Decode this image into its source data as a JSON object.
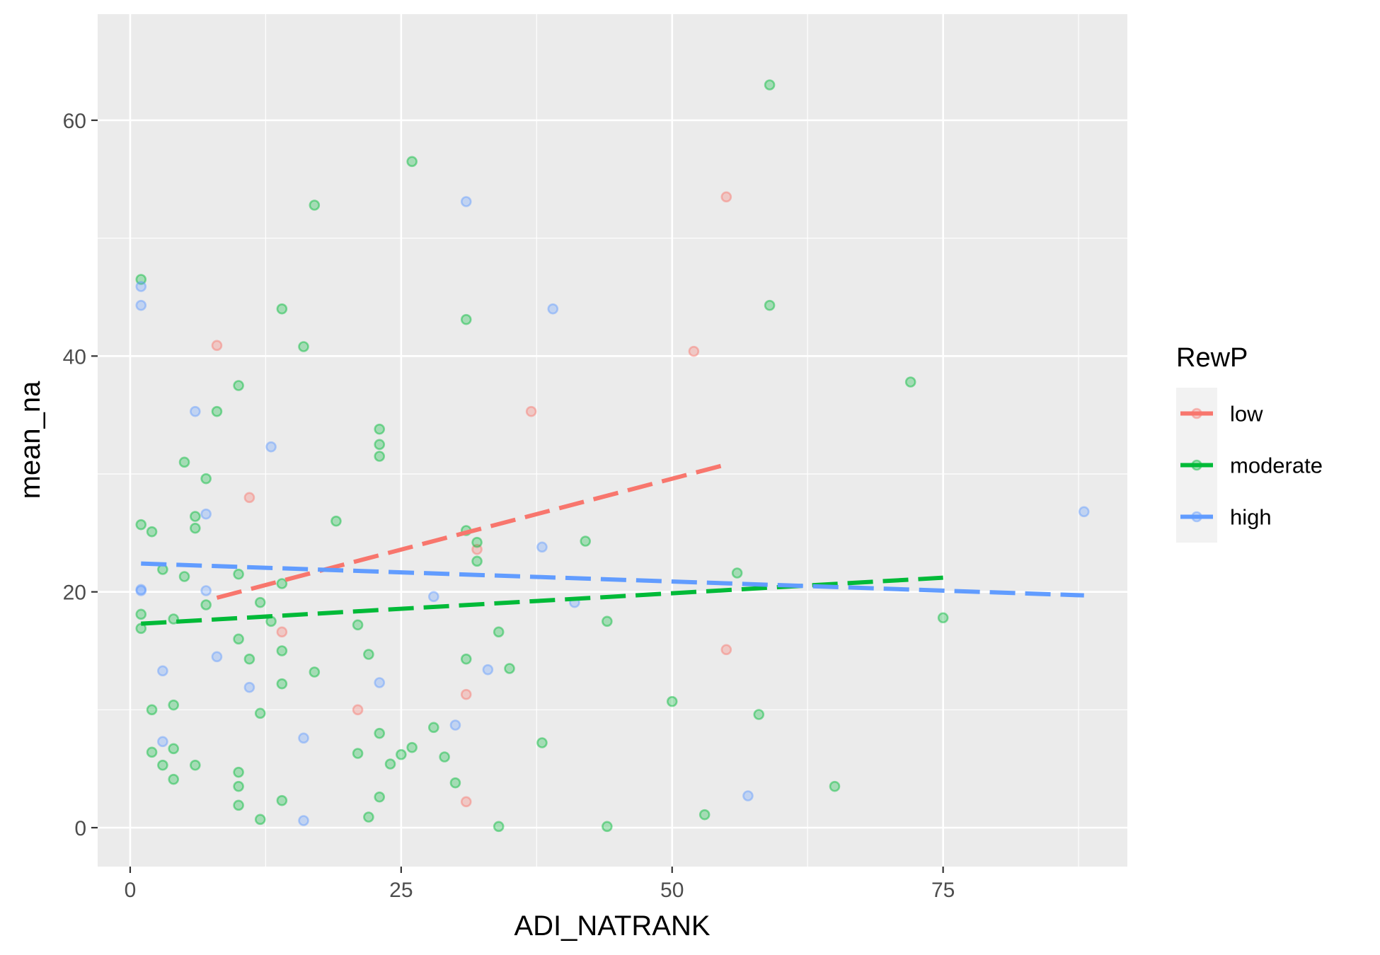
{
  "chart_data": {
    "type": "scatter",
    "title": "",
    "xlabel": "ADI_NATRANK",
    "ylabel": "mean_na",
    "xlim": [
      -3,
      92
    ],
    "ylim": [
      -3.3,
      69
    ],
    "x_ticks": [
      0,
      25,
      50,
      75
    ],
    "y_ticks": [
      0,
      20,
      40,
      60
    ],
    "grid": true,
    "legend": {
      "title": "RewP",
      "position": "right"
    },
    "series": [
      {
        "name": "low",
        "color": "#F8766D",
        "points": [
          [
            8,
            40.9
          ],
          [
            11,
            28
          ],
          [
            14,
            16.6
          ],
          [
            21,
            10
          ],
          [
            31,
            11.3
          ],
          [
            31,
            2.2
          ],
          [
            32,
            23.6
          ],
          [
            37,
            35.3
          ],
          [
            52,
            40.4
          ],
          [
            55,
            53.5
          ],
          [
            55,
            15.1
          ]
        ],
        "trend": [
          [
            8,
            19.5
          ],
          [
            55,
            30.8
          ]
        ]
      },
      {
        "name": "moderate",
        "color": "#00BA38",
        "points": [
          [
            1,
            46.5
          ],
          [
            1,
            25.7
          ],
          [
            1,
            18.1
          ],
          [
            1,
            16.9
          ],
          [
            2,
            25.1
          ],
          [
            2,
            10
          ],
          [
            2,
            6.4
          ],
          [
            3,
            21.9
          ],
          [
            3,
            5.3
          ],
          [
            4,
            17.7
          ],
          [
            4,
            10.4
          ],
          [
            4,
            6.7
          ],
          [
            4,
            4.1
          ],
          [
            5,
            31
          ],
          [
            5,
            21.3
          ],
          [
            6,
            26.4
          ],
          [
            6,
            25.4
          ],
          [
            6,
            5.3
          ],
          [
            7,
            29.6
          ],
          [
            7,
            18.9
          ],
          [
            8,
            35.3
          ],
          [
            10,
            37.5
          ],
          [
            10,
            21.5
          ],
          [
            10,
            16
          ],
          [
            10,
            4.7
          ],
          [
            10,
            3.5
          ],
          [
            10,
            1.9
          ],
          [
            11,
            14.3
          ],
          [
            12,
            19.1
          ],
          [
            12,
            9.7
          ],
          [
            12,
            0.7
          ],
          [
            13,
            17.5
          ],
          [
            14,
            44
          ],
          [
            14,
            20.7
          ],
          [
            14,
            15
          ],
          [
            14,
            12.2
          ],
          [
            14,
            2.3
          ],
          [
            16,
            40.8
          ],
          [
            17,
            52.8
          ],
          [
            17,
            13.2
          ],
          [
            19,
            26
          ],
          [
            21,
            17.2
          ],
          [
            21,
            6.3
          ],
          [
            22,
            14.7
          ],
          [
            22,
            0.9
          ],
          [
            23,
            33.8
          ],
          [
            23,
            32.5
          ],
          [
            23,
            31.5
          ],
          [
            23,
            8
          ],
          [
            23,
            2.6
          ],
          [
            24,
            5.4
          ],
          [
            25,
            6.2
          ],
          [
            26,
            56.5
          ],
          [
            26,
            6.8
          ],
          [
            28,
            8.5
          ],
          [
            29,
            6
          ],
          [
            30,
            3.8
          ],
          [
            31,
            43.1
          ],
          [
            31,
            25.2
          ],
          [
            31,
            14.3
          ],
          [
            32,
            24.2
          ],
          [
            32,
            22.6
          ],
          [
            34,
            16.6
          ],
          [
            34,
            0.1
          ],
          [
            35,
            13.5
          ],
          [
            38,
            7.2
          ],
          [
            42,
            24.3
          ],
          [
            44,
            17.5
          ],
          [
            44,
            0.1
          ],
          [
            50,
            10.7
          ],
          [
            53,
            1.1
          ],
          [
            56,
            21.6
          ],
          [
            58,
            9.6
          ],
          [
            59,
            63
          ],
          [
            59,
            44.3
          ],
          [
            65,
            3.5
          ],
          [
            72,
            37.8
          ],
          [
            75,
            17.8
          ]
        ],
        "trend": [
          [
            1,
            17.3
          ],
          [
            75,
            21.2
          ]
        ]
      },
      {
        "name": "high",
        "color": "#619CFF",
        "points": [
          [
            1,
            45.9
          ],
          [
            1,
            44.3
          ],
          [
            1,
            20.2
          ],
          [
            1,
            20.1
          ],
          [
            3,
            13.3
          ],
          [
            3,
            7.3
          ],
          [
            6,
            35.3
          ],
          [
            7,
            26.6
          ],
          [
            7,
            20.1
          ],
          [
            8,
            14.5
          ],
          [
            11,
            11.9
          ],
          [
            13,
            32.3
          ],
          [
            16,
            7.6
          ],
          [
            16,
            0.6
          ],
          [
            23,
            12.3
          ],
          [
            28,
            19.6
          ],
          [
            30,
            8.7
          ],
          [
            31,
            53.1
          ],
          [
            33,
            13.4
          ],
          [
            38,
            23.8
          ],
          [
            39,
            44
          ],
          [
            41,
            19.1
          ],
          [
            57,
            2.7
          ],
          [
            88,
            26.8
          ]
        ],
        "trend": [
          [
            1,
            22.4
          ],
          [
            88,
            19.7
          ]
        ]
      }
    ]
  }
}
